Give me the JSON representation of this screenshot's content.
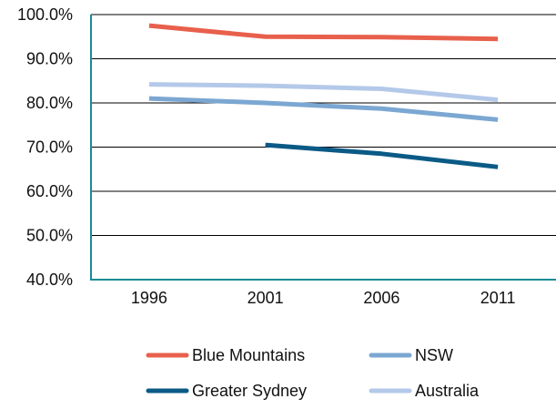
{
  "chart_data": {
    "type": "line",
    "x": [
      "1996",
      "2001",
      "2006",
      "2011"
    ],
    "y_ticks": [
      "100.0%",
      "90.0%",
      "80.0%",
      "70.0%",
      "60.0%",
      "50.0%",
      "40.0%"
    ],
    "ylim": [
      40,
      100
    ],
    "grid": true,
    "legend_position": "bottom",
    "series": [
      {
        "name": "Blue Mountains",
        "color": "#E8604C",
        "values": [
          97.5,
          95.0,
          94.9,
          94.5
        ]
      },
      {
        "name": "NSW",
        "color": "#7BA7D2",
        "values": [
          81.0,
          80.0,
          78.7,
          76.2
        ]
      },
      {
        "name": "Greater Sydney",
        "color": "#0B5A86",
        "values": [
          null,
          70.5,
          68.5,
          65.5
        ]
      },
      {
        "name": "Australia",
        "color": "#B4C9E9",
        "values": [
          84.2,
          83.9,
          83.2,
          80.7
        ]
      }
    ]
  }
}
